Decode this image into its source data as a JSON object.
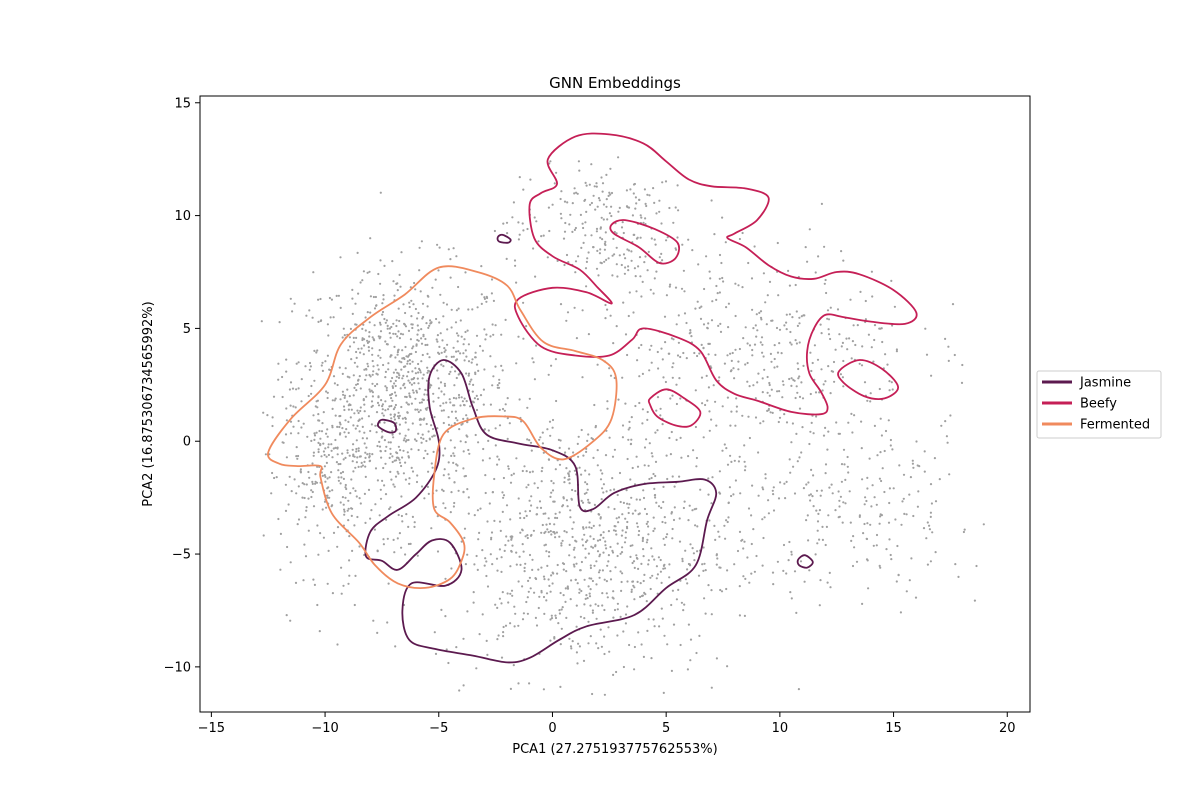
{
  "chart_data": {
    "type": "scatter",
    "title": "GNN Embeddings",
    "xlabel": "PCA1 (27.275193775762553%)",
    "ylabel": "PCA2 (16.875306734565992%)",
    "xlim": [
      -15.5,
      21
    ],
    "ylim": [
      -12,
      15.3
    ],
    "xticks": [
      -15,
      -10,
      -5,
      0,
      5,
      10,
      15,
      20
    ],
    "yticks": [
      -10,
      -5,
      0,
      5,
      10,
      15
    ],
    "grid": false,
    "legend": {
      "placement": "right",
      "entries": [
        {
          "label": "Jasmine",
          "color": "#5c1a4f"
        },
        {
          "label": "Beefy",
          "color": "#c51f56"
        },
        {
          "label": "Fermented",
          "color": "#f08a5d"
        }
      ]
    },
    "background_points": {
      "color": "#a0a0a0",
      "description_x_range": [
        -12.8,
        19.3
      ],
      "description_y_range": [
        -11.4,
        12.6
      ],
      "count_approx": 3000
    },
    "contours": [
      {
        "series": "Jasmine",
        "color": "#5c1a4f",
        "rings": [
          [
            [
              -5.4,
              2.9
            ],
            [
              -4.8,
              3.6
            ],
            [
              -4.0,
              3.0
            ],
            [
              -3.5,
              1.5
            ],
            [
              -2.9,
              0.3
            ],
            [
              -1.5,
              -0.1
            ],
            [
              0.0,
              -0.4
            ],
            [
              1.0,
              -1.1
            ],
            [
              1.2,
              -2.9
            ],
            [
              1.8,
              -3.0
            ],
            [
              2.7,
              -2.3
            ],
            [
              4.0,
              -1.9
            ],
            [
              5.5,
              -1.8
            ],
            [
              6.7,
              -1.7
            ],
            [
              7.2,
              -2.3
            ],
            [
              6.8,
              -3.5
            ],
            [
              6.3,
              -5.5
            ],
            [
              5.0,
              -6.5
            ],
            [
              3.6,
              -7.7
            ],
            [
              1.5,
              -8.2
            ],
            [
              0.3,
              -8.8
            ],
            [
              -1.0,
              -9.6
            ],
            [
              -2.0,
              -9.8
            ],
            [
              -3.5,
              -9.5
            ],
            [
              -5.2,
              -9.2
            ],
            [
              -6.3,
              -8.8
            ],
            [
              -6.6,
              -7.5
            ],
            [
              -6.2,
              -6.3
            ],
            [
              -4.7,
              -6.4
            ],
            [
              -4.0,
              -5.7
            ],
            [
              -4.5,
              -4.5
            ],
            [
              -5.3,
              -4.4
            ],
            [
              -6.0,
              -5.0
            ],
            [
              -6.8,
              -5.7
            ],
            [
              -7.5,
              -5.3
            ],
            [
              -8.2,
              -5.1
            ],
            [
              -8.0,
              -4.0
            ],
            [
              -7.2,
              -3.3
            ],
            [
              -6.0,
              -2.5
            ],
            [
              -5.1,
              -1.2
            ],
            [
              -5.0,
              0.0
            ],
            [
              -5.4,
              1.5
            ],
            [
              -5.4,
              2.9
            ]
          ],
          [
            [
              -7.4,
              0.95
            ],
            [
              -6.95,
              0.8
            ],
            [
              -6.9,
              0.45
            ],
            [
              -7.2,
              0.4
            ],
            [
              -7.65,
              0.65
            ],
            [
              -7.6,
              0.9
            ],
            [
              -7.4,
              0.95
            ]
          ],
          [
            [
              -2.2,
              9.15
            ],
            [
              -1.85,
              8.95
            ],
            [
              -1.95,
              8.8
            ],
            [
              -2.35,
              8.85
            ],
            [
              -2.4,
              9.05
            ],
            [
              -2.2,
              9.15
            ]
          ],
          [
            [
              11.1,
              -5.05
            ],
            [
              11.45,
              -5.35
            ],
            [
              11.2,
              -5.6
            ],
            [
              10.85,
              -5.5
            ],
            [
              10.8,
              -5.25
            ],
            [
              11.1,
              -5.05
            ]
          ]
        ]
      },
      {
        "series": "Beefy",
        "color": "#c51f56",
        "rings": [
          [
            [
              0.2,
              11.4
            ],
            [
              -0.2,
              12.5
            ],
            [
              1.0,
              13.5
            ],
            [
              2.5,
              13.6
            ],
            [
              4.0,
              13.2
            ],
            [
              5.0,
              12.4
            ],
            [
              6.0,
              11.6
            ],
            [
              7.0,
              11.3
            ],
            [
              8.5,
              11.2
            ],
            [
              9.5,
              10.8
            ],
            [
              9.0,
              9.8
            ],
            [
              8.0,
              9.2
            ],
            [
              7.7,
              9.0
            ],
            [
              8.5,
              8.6
            ],
            [
              9.5,
              7.8
            ],
            [
              10.5,
              7.3
            ],
            [
              11.5,
              7.2
            ],
            [
              12.5,
              7.5
            ],
            [
              13.5,
              7.4
            ],
            [
              15.0,
              6.7
            ],
            [
              16.0,
              5.7
            ],
            [
              15.5,
              5.2
            ],
            [
              14.0,
              5.3
            ],
            [
              12.8,
              5.5
            ],
            [
              12.0,
              5.6
            ],
            [
              11.5,
              5.0
            ],
            [
              11.2,
              4.0
            ],
            [
              11.3,
              3.0
            ],
            [
              11.8,
              2.2
            ],
            [
              12.1,
              1.5
            ],
            [
              11.8,
              1.2
            ],
            [
              10.5,
              1.3
            ],
            [
              9.0,
              1.8
            ],
            [
              8.0,
              2.1
            ],
            [
              7.2,
              2.7
            ],
            [
              6.5,
              4.0
            ],
            [
              5.5,
              4.6
            ],
            [
              4.0,
              5.0
            ],
            [
              3.5,
              4.5
            ],
            [
              2.5,
              3.8
            ],
            [
              1.0,
              3.8
            ],
            [
              -0.5,
              4.2
            ],
            [
              -1.5,
              5.5
            ],
            [
              -1.5,
              6.3
            ],
            [
              0.0,
              6.8
            ],
            [
              1.5,
              6.6
            ],
            [
              2.6,
              6.1
            ],
            [
              2.0,
              6.8
            ],
            [
              1.2,
              7.6
            ],
            [
              0.0,
              8.2
            ],
            [
              -0.8,
              9.0
            ],
            [
              -1.0,
              10.5
            ],
            [
              -0.5,
              11.0
            ],
            [
              0.2,
              11.4
            ]
          ],
          [
            [
              2.6,
              9.6
            ],
            [
              3.2,
              9.8
            ],
            [
              4.5,
              9.4
            ],
            [
              5.5,
              8.8
            ],
            [
              5.4,
              8.1
            ],
            [
              4.7,
              7.9
            ],
            [
              3.8,
              8.6
            ],
            [
              2.7,
              9.2
            ],
            [
              2.6,
              9.6
            ]
          ],
          [
            [
              4.3,
              1.9
            ],
            [
              5.0,
              2.3
            ],
            [
              5.8,
              1.9
            ],
            [
              6.5,
              1.3
            ],
            [
              6.1,
              0.7
            ],
            [
              5.4,
              0.7
            ],
            [
              4.6,
              1.1
            ],
            [
              4.3,
              1.6
            ],
            [
              4.3,
              1.9
            ]
          ],
          [
            [
              12.6,
              3.1
            ],
            [
              13.5,
              3.6
            ],
            [
              14.5,
              3.2
            ],
            [
              15.2,
              2.4
            ],
            [
              14.6,
              1.9
            ],
            [
              13.7,
              2.0
            ],
            [
              12.8,
              2.6
            ],
            [
              12.6,
              3.1
            ]
          ]
        ]
      },
      {
        "series": "Fermented",
        "color": "#f08a5d",
        "rings": [
          [
            [
              -12.5,
              -0.5
            ],
            [
              -11.5,
              1.0
            ],
            [
              -10.0,
              2.5
            ],
            [
              -9.3,
              4.3
            ],
            [
              -8.0,
              5.5
            ],
            [
              -6.5,
              6.5
            ],
            [
              -5.0,
              7.7
            ],
            [
              -3.3,
              7.5
            ],
            [
              -2.0,
              6.9
            ],
            [
              -1.4,
              5.8
            ],
            [
              -0.4,
              4.4
            ],
            [
              1.0,
              4.0
            ],
            [
              2.2,
              3.6
            ],
            [
              2.8,
              2.8
            ],
            [
              2.6,
              1.0
            ],
            [
              1.8,
              0.0
            ],
            [
              0.5,
              -0.8
            ],
            [
              -0.5,
              -0.3
            ],
            [
              -1.3,
              0.9
            ],
            [
              -2.2,
              1.1
            ],
            [
              -3.5,
              1.0
            ],
            [
              -4.8,
              0.3
            ],
            [
              -5.2,
              -1.5
            ],
            [
              -5.2,
              -3.0
            ],
            [
              -4.5,
              -3.6
            ],
            [
              -3.9,
              -4.5
            ],
            [
              -4.0,
              -5.3
            ],
            [
              -4.5,
              -6.1
            ],
            [
              -5.6,
              -6.5
            ],
            [
              -6.8,
              -6.3
            ],
            [
              -7.8,
              -5.5
            ],
            [
              -8.5,
              -4.5
            ],
            [
              -9.7,
              -3.2
            ],
            [
              -10.2,
              -1.6
            ],
            [
              -10.2,
              -1.1
            ],
            [
              -11.2,
              -1.1
            ],
            [
              -12.0,
              -1.0
            ],
            [
              -12.5,
              -0.5
            ]
          ]
        ]
      }
    ]
  }
}
